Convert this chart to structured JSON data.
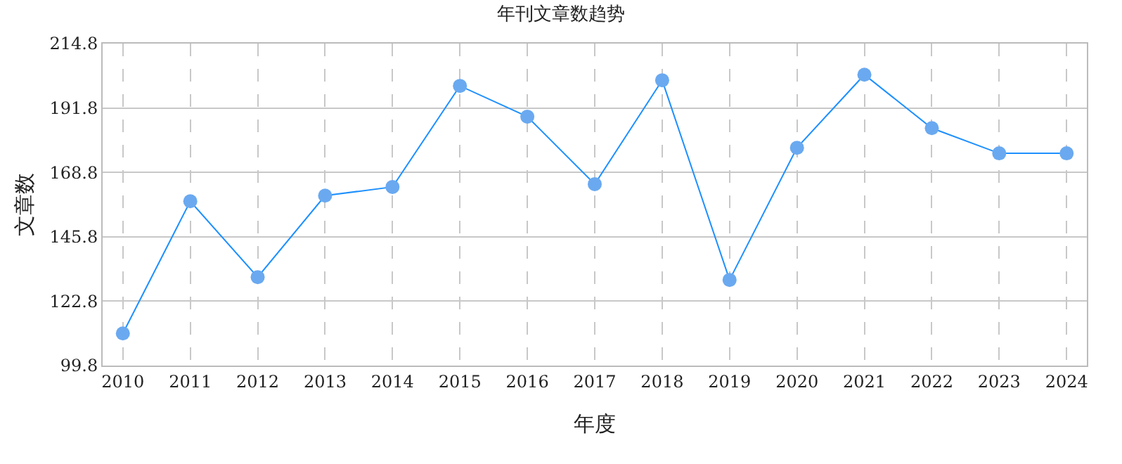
{
  "chart_data": {
    "type": "line",
    "title": "年刊文章数趋势",
    "xlabel": "年度",
    "ylabel": "文章数",
    "categories": [
      "2010",
      "2011",
      "2012",
      "2013",
      "2014",
      "2015",
      "2016",
      "2017",
      "2018",
      "2019",
      "2020",
      "2021",
      "2022",
      "2023",
      "2024"
    ],
    "series": [
      {
        "color": "#1e90ff",
        "values": [
          111.3,
          158.5,
          131.4,
          160.5,
          163.6,
          199.7,
          188.7,
          164.6,
          201.7,
          130.4,
          177.6,
          203.7,
          184.6,
          175.6,
          175.6
        ]
      }
    ],
    "ylim": [
      99.8,
      214.8
    ],
    "yticks": [
      99.8,
      122.8,
      145.8,
      168.8,
      191.8,
      214.8
    ],
    "grid": true,
    "marker": "circle",
    "line_style": "solid"
  }
}
